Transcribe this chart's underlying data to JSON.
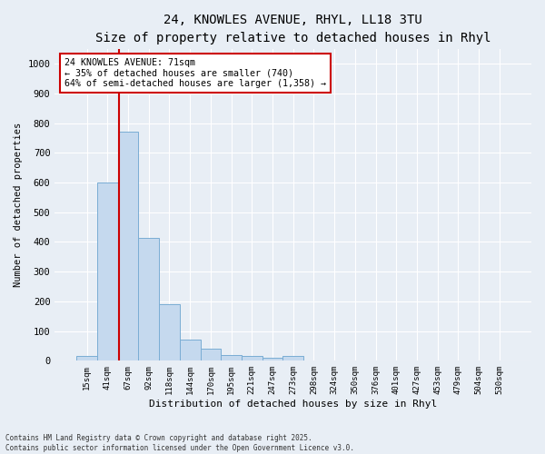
{
  "title_line1": "24, KNOWLES AVENUE, RHYL, LL18 3TU",
  "title_line2": "Size of property relative to detached houses in Rhyl",
  "xlabel": "Distribution of detached houses by size in Rhyl",
  "ylabel": "Number of detached properties",
  "bar_labels": [
    "15sqm",
    "41sqm",
    "67sqm",
    "92sqm",
    "118sqm",
    "144sqm",
    "170sqm",
    "195sqm",
    "221sqm",
    "247sqm",
    "273sqm",
    "298sqm",
    "324sqm",
    "350sqm",
    "376sqm",
    "401sqm",
    "427sqm",
    "453sqm",
    "479sqm",
    "504sqm",
    "530sqm"
  ],
  "bar_values": [
    15,
    600,
    770,
    415,
    190,
    70,
    40,
    20,
    15,
    10,
    15,
    0,
    0,
    0,
    0,
    0,
    0,
    0,
    0,
    0,
    0
  ],
  "bar_color": "#c5d9ee",
  "bar_edge_color": "#7aadd4",
  "ylim": [
    0,
    1050
  ],
  "yticks": [
    0,
    100,
    200,
    300,
    400,
    500,
    600,
    700,
    800,
    900,
    1000
  ],
  "property_line_x": 1.56,
  "property_line_color": "#cc0000",
  "annotation_text": "24 KNOWLES AVENUE: 71sqm\n← 35% of detached houses are smaller (740)\n64% of semi-detached houses are larger (1,358) →",
  "annotation_box_color": "#ffffff",
  "annotation_box_edge_color": "#cc0000",
  "footer_line1": "Contains HM Land Registry data © Crown copyright and database right 2025.",
  "footer_line2": "Contains public sector information licensed under the Open Government Licence v3.0.",
  "background_color": "#e8eef5",
  "plot_bg_color": "#e8eef5",
  "grid_color": "#ffffff",
  "title_fontsize": 10,
  "subtitle_fontsize": 8.5
}
